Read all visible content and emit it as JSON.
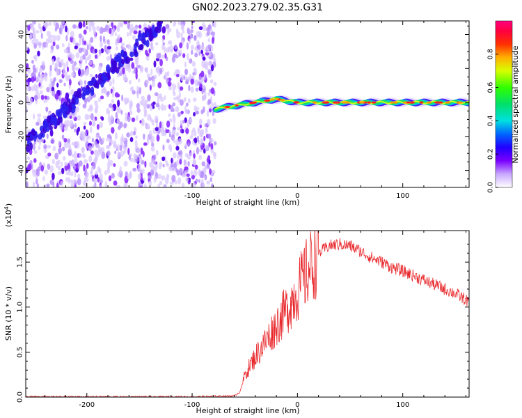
{
  "title": "GN02.2023.279.02.35.G31",
  "chart_data": [
    {
      "type": "heatmap",
      "title": "",
      "xlabel": "Height of straight line (km)",
      "ylabel": "Frequency (Hz)",
      "xlim": [
        -258,
        163
      ],
      "ylim": [
        -50,
        48
      ],
      "xticks": [
        -200,
        -100,
        0,
        100
      ],
      "yticks": [
        -40,
        -20,
        0,
        20,
        40
      ],
      "noise_region_x": [
        -258,
        -78
      ],
      "signal_trace": {
        "x": [
          -78,
          -70,
          -60,
          -50,
          -40,
          -30,
          -20,
          -10,
          0,
          20,
          40,
          60,
          80,
          100,
          120,
          140,
          163
        ],
        "y": [
          -4,
          -3,
          -2,
          -1,
          0,
          1,
          2,
          1,
          0,
          0,
          0,
          0,
          0,
          0,
          0,
          0,
          0
        ]
      },
      "diagonal_streak": {
        "x": [
          -258,
          -130
        ],
        "y": [
          -25,
          45
        ]
      },
      "colorbar": {
        "label": "Normalized spectral amplitude",
        "range": [
          0,
          1
        ],
        "ticks": [
          "0.0",
          "0.2",
          "0.4",
          "0.6",
          "0.8"
        ]
      }
    },
    {
      "type": "line",
      "title": "",
      "xlabel": "Height of straight line (km)",
      "ylabel": "SNR (10 * v/v)",
      "scale_note": "(x10",
      "scale_exp": "4",
      "scale_close": ")",
      "xlim": [
        -258,
        163
      ],
      "ylim": [
        0,
        1.85
      ],
      "xticks": [
        -200,
        -100,
        0,
        100
      ],
      "yticks": [
        "0.0",
        "0.5",
        "1.0",
        "1.5"
      ],
      "series": [
        {
          "color": "#e8282c",
          "x": [
            -258,
            -200,
            -100,
            -60,
            -55,
            -52,
            -50,
            -45,
            -40,
            -30,
            -20,
            -10,
            0,
            10,
            20,
            30,
            40,
            50,
            60,
            70,
            80,
            90,
            100,
            110,
            120,
            130,
            140,
            150,
            160,
            163
          ],
          "y": [
            0.0,
            0.0,
            0.0,
            0.01,
            0.05,
            0.15,
            0.25,
            0.35,
            0.45,
            0.62,
            0.8,
            0.98,
            1.18,
            1.4,
            1.6,
            1.68,
            1.7,
            1.68,
            1.62,
            1.55,
            1.5,
            1.44,
            1.4,
            1.35,
            1.3,
            1.25,
            1.2,
            1.15,
            1.08,
            1.05
          ]
        }
      ]
    }
  ]
}
